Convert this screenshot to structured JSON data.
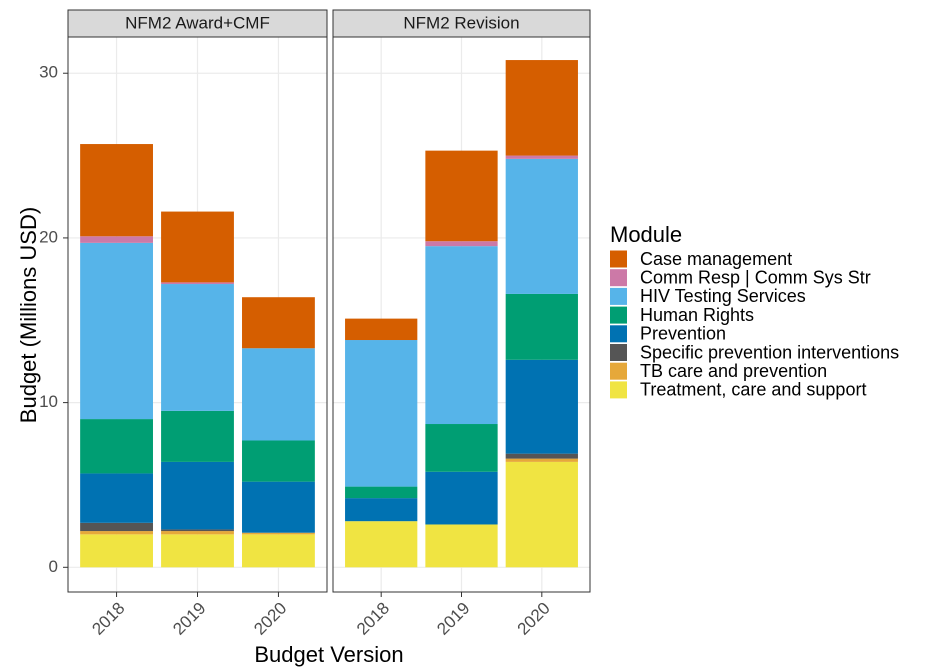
{
  "chart_data": {
    "type": "bar",
    "stacked": true,
    "xlabel": "Budget Version",
    "ylabel": "Budget (Millions USD)",
    "legend_title": "Module",
    "panels": [
      {
        "title": "NFM2 Award+CMF",
        "categories": [
          "2018",
          "2019",
          "2020"
        ]
      },
      {
        "title": "NFM2 Revision",
        "categories": [
          "2018",
          "2019",
          "2020"
        ]
      }
    ],
    "ylim": [
      -1.5,
      32.2
    ],
    "yticks": [
      0,
      10,
      20,
      30
    ],
    "grid": true,
    "series": [
      {
        "name": "Case management",
        "color": "#D55E00",
        "values": [
          [
            5.6,
            4.3,
            3.1
          ],
          [
            1.3,
            5.5,
            5.8
          ]
        ]
      },
      {
        "name": "Comm Resp | Comm Sys Str",
        "color": "#CC79A7",
        "values": [
          [
            0.4,
            0.1,
            0
          ],
          [
            0,
            0.3,
            0.2
          ]
        ]
      },
      {
        "name": "HIV Testing Services",
        "color": "#56B4E9",
        "values": [
          [
            10.7,
            7.7,
            5.6
          ],
          [
            8.9,
            10.8,
            8.2
          ]
        ]
      },
      {
        "name": "Human Rights",
        "color": "#009E73",
        "values": [
          [
            3.3,
            3.1,
            2.5
          ],
          [
            0.7,
            2.9,
            4.0
          ]
        ]
      },
      {
        "name": "Prevention",
        "color": "#0072B2",
        "values": [
          [
            3.0,
            4.1,
            3.1
          ],
          [
            1.4,
            3.2,
            5.7
          ]
        ]
      },
      {
        "name": "Specific prevention interventions",
        "color": "#555555",
        "values": [
          [
            0.5,
            0.1,
            0
          ],
          [
            0,
            0,
            0.3
          ]
        ]
      },
      {
        "name": "TB care and prevention",
        "color": "#E6A83A",
        "values": [
          [
            0.2,
            0.2,
            0.1
          ],
          [
            0,
            0,
            0.2
          ]
        ]
      },
      {
        "name": "Treatment, care and support",
        "color": "#F0E442",
        "values": [
          [
            2.0,
            2.0,
            2.0
          ],
          [
            2.8,
            2.6,
            6.4
          ]
        ]
      }
    ]
  }
}
